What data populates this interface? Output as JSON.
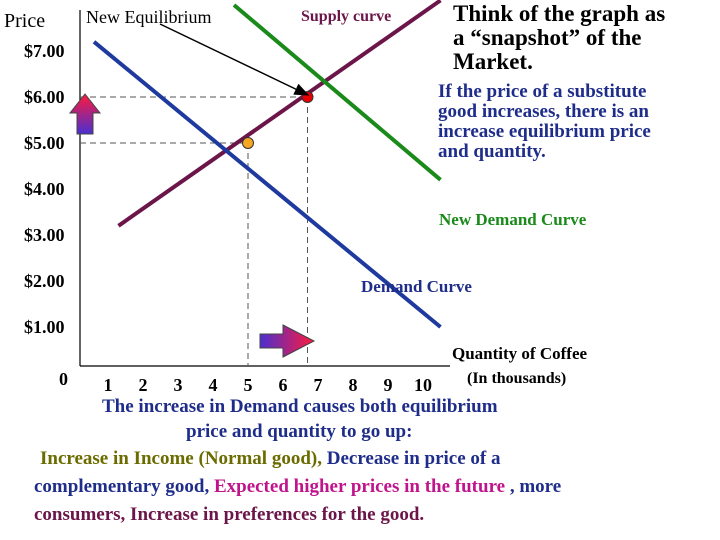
{
  "chart_data": {
    "type": "line",
    "ylabel": "Price",
    "xlabel": "Quantity of Coffee",
    "xlabel_sub": "(In thousands)",
    "y_ticks": [
      "$7.00",
      "$6.00",
      "$5.00",
      "$4.00",
      "$3.00",
      "$2.00",
      "$1.00",
      "0"
    ],
    "y_tick_values": [
      7,
      6,
      5,
      4,
      3,
      2,
      1,
      0
    ],
    "x_ticks": [
      "1",
      "2",
      "3",
      "4",
      "5",
      "6",
      "7",
      "8",
      "9",
      "10"
    ],
    "x_tick_values": [
      1,
      2,
      3,
      4,
      5,
      6,
      7,
      8,
      9,
      10
    ],
    "xlim": [
      0,
      10.5
    ],
    "ylim": [
      0,
      7.6
    ],
    "series": [
      {
        "name": "Supply curve",
        "color": "#6b1548",
        "points": [
          [
            1.3,
            3.2
          ],
          [
            10.5,
            8.1
          ]
        ]
      },
      {
        "name": "Demand Curve",
        "color": "#1f3a9e",
        "points": [
          [
            0.6,
            7.2
          ],
          [
            10.5,
            1.0
          ]
        ]
      },
      {
        "name": "New Demand Curve",
        "color": "#1a8a1a",
        "points": [
          [
            4.6,
            8.0
          ],
          [
            10.5,
            4.2
          ]
        ]
      }
    ],
    "equilibria": [
      {
        "label": "Original equilibrium",
        "x": 5,
        "y": 5,
        "color": "#f5a623"
      },
      {
        "label": "New Equilibrium",
        "x": 6.7,
        "y": 6,
        "color": "#e60000"
      }
    ],
    "annotations": {
      "supply_label": "Supply curve",
      "new_equilibrium_label": "New Equilibrium",
      "demand_label": "Demand Curve",
      "new_demand_label": "New Demand Curve"
    }
  },
  "text": {
    "side_title": [
      "Think of the graph as",
      "a “snapshot” of the",
      "Market."
    ],
    "side_note": [
      "If the price of a substitute",
      "good increases, there is an",
      "increase equilibrium price",
      "and quantity."
    ],
    "bottom_line1_a": "The increase in Demand",
    "bottom_line1_b": " causes both equilibrium",
    "bottom_line2": "price and quantity to go up:",
    "bottom_line3_a": "Increase in Income (Normal good), ",
    "bottom_line3_b": "Decrease in price of a",
    "bottom_line4_a": "complementary good, ",
    "bottom_line4_b": "Expected higher prices in the future",
    "bottom_line4_c": " , more",
    "bottom_line5": "consumers,  Increase in preferences for the good."
  },
  "colors": {
    "navy": "#1f2d8a",
    "olive": "#6b6b00",
    "magenta": "#c0148c",
    "black": "#000000"
  }
}
